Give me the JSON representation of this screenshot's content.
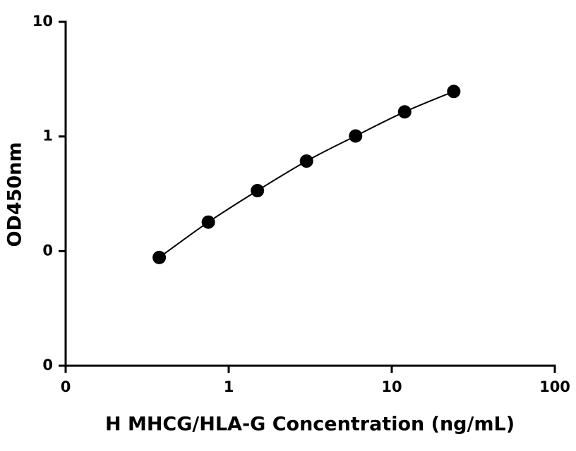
{
  "chart_data": {
    "type": "line",
    "x_label": "H MHCG/HLA-G Concentration (ng/mL)",
    "y_label": "OD450nm",
    "x_scale": "log",
    "y_scale": "log",
    "xlim": [
      0.1,
      100
    ],
    "xticks": [
      {
        "value": 0.1,
        "label": "0"
      },
      1,
      10,
      100
    ],
    "ylim": [
      0.01,
      10
    ],
    "yticks": [
      {
        "value": 0.01,
        "label": "0"
      },
      {
        "value": 0.1,
        "label": "0"
      },
      1,
      10
    ],
    "markers": true,
    "series": [
      {
        "color": "#000000",
        "x": [
          0.375,
          0.75,
          1.5,
          3,
          6,
          12,
          24
        ],
        "values": [
          0.088,
          0.179,
          0.337,
          0.61,
          1.01,
          1.64,
          2.47
        ]
      }
    ]
  }
}
